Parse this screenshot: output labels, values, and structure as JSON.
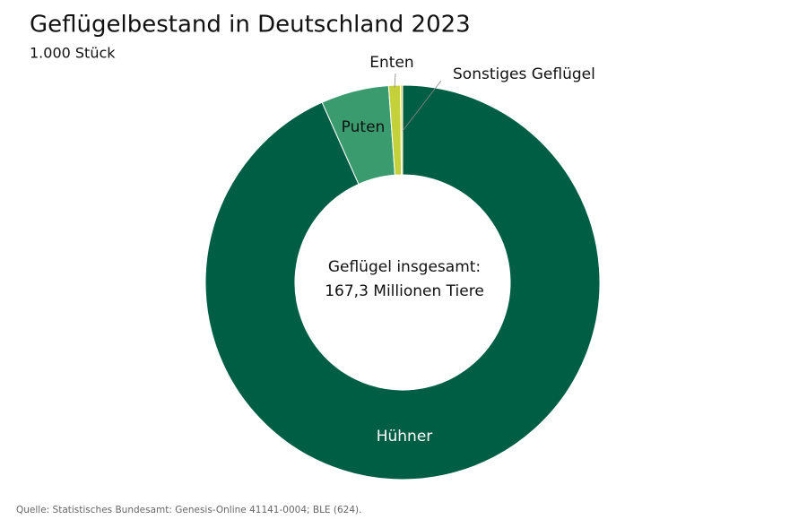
{
  "chart_data": {
    "type": "donut",
    "title": "Geflügelbestand in Deutschland 2023",
    "subtitle": "1.000 Stück",
    "center_label": [
      "Geflügel insgesamt:",
      "167,3 Millionen Tiere"
    ],
    "categories": [
      "Hühner",
      "Puten",
      "Enten",
      "Sonstiges Geflügel"
    ],
    "values": [
      156100,
      9300,
      1600,
      300
    ],
    "colors": [
      "#005e45",
      "#3a9b6e",
      "#c5d13b",
      "#e6d94c"
    ],
    "source": "Quelle: Statistisches Bundesamt: Genesis-Online 41141-0004; BLE (624)."
  }
}
